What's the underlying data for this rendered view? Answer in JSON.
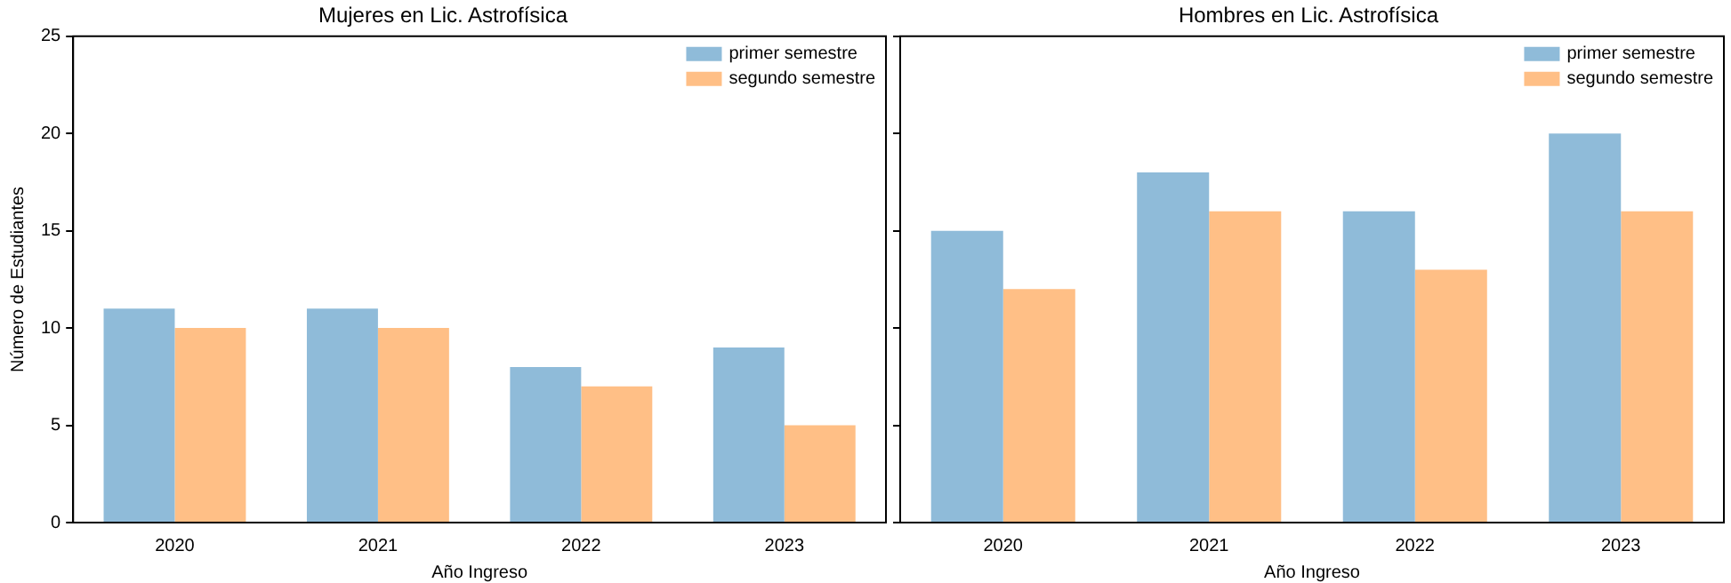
{
  "chart_data": [
    {
      "type": "bar",
      "title": "Mujeres en Lic. Astrofísica",
      "xlabel": "Año Ingreso",
      "ylabel": "Número de Estudiantes",
      "categories": [
        "2020",
        "2021",
        "2022",
        "2023"
      ],
      "series": [
        {
          "name": "primer semestre",
          "color": "#8fbbd9",
          "values": [
            11,
            11,
            8,
            9
          ]
        },
        {
          "name": "segundo semestre",
          "color": "#ffbf86",
          "values": [
            10,
            10,
            7,
            5
          ]
        }
      ],
      "ylim": [
        0,
        25
      ],
      "yticks": [
        0,
        5,
        10,
        15,
        20,
        25
      ],
      "legend": "top right"
    },
    {
      "type": "bar",
      "title": "Hombres en Lic. Astrofísica",
      "xlabel": "Año Ingreso",
      "categories": [
        "2020",
        "2021",
        "2022",
        "2023"
      ],
      "series": [
        {
          "name": "primer semestre",
          "color": "#8fbbd9",
          "values": [
            15,
            18,
            16,
            20
          ]
        },
        {
          "name": "segundo semestre",
          "color": "#ffbf86",
          "values": [
            12,
            16,
            13,
            16
          ]
        }
      ],
      "ylim": [
        0,
        25
      ],
      "yticks": [
        0,
        5,
        10,
        15,
        20,
        25
      ],
      "legend": "top right",
      "tick_labels": "x"
    }
  ]
}
